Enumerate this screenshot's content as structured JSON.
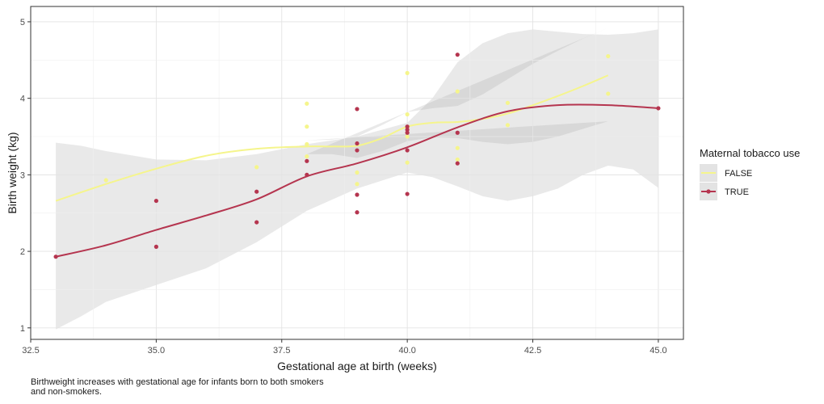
{
  "chart_data": {
    "type": "scatter",
    "xlabel": "Gestational age at birth (weeks)",
    "ylabel": "Birth weight (kg)",
    "xlim": [
      32.5,
      45.5
    ],
    "ylim": [
      0.85,
      5.2
    ],
    "xticks": [
      32.5,
      35.0,
      37.5,
      40.0,
      42.5,
      45.0
    ],
    "xtick_labels": [
      "32.5",
      "35.0",
      "37.5",
      "40.0",
      "42.5",
      "45.0"
    ],
    "yticks": [
      1,
      2,
      3,
      4,
      5
    ],
    "ytick_labels": [
      "1",
      "2",
      "3",
      "4",
      "5"
    ],
    "grid": true,
    "legend": {
      "title": "Maternal tobacco use",
      "position": "right"
    },
    "series": [
      {
        "name": "FALSE",
        "color": "#f5f58c",
        "points": [
          [
            34,
            2.93
          ],
          [
            37,
            3.1
          ],
          [
            38,
            3.93
          ],
          [
            38,
            3.63
          ],
          [
            38,
            3.4
          ],
          [
            38,
            3.24
          ],
          [
            39,
            3.03
          ],
          [
            39,
            2.88
          ],
          [
            40,
            4.33
          ],
          [
            40,
            3.79
          ],
          [
            40,
            3.62
          ],
          [
            40,
            3.5
          ],
          [
            40,
            3.16
          ],
          [
            41,
            4.09
          ],
          [
            41,
            3.35
          ],
          [
            41,
            3.2
          ],
          [
            42,
            3.94
          ],
          [
            42,
            3.65
          ],
          [
            44,
            4.55
          ],
          [
            44,
            4.06
          ]
        ],
        "smooth": [
          [
            33,
            2.66
          ],
          [
            34,
            2.88
          ],
          [
            35,
            3.08
          ],
          [
            36,
            3.25
          ],
          [
            37,
            3.34
          ],
          [
            38,
            3.37
          ],
          [
            38.5,
            3.37
          ],
          [
            39,
            3.38
          ],
          [
            39.5,
            3.48
          ],
          [
            40,
            3.63
          ],
          [
            40.5,
            3.68
          ],
          [
            41,
            3.69
          ],
          [
            41.5,
            3.73
          ],
          [
            42,
            3.8
          ],
          [
            42.5,
            3.91
          ],
          [
            43,
            4.03
          ],
          [
            43.5,
            4.16
          ],
          [
            44,
            4.3
          ]
        ],
        "band_upper": [
          [
            38,
            3.45
          ],
          [
            38.5,
            3.46
          ],
          [
            39,
            3.5
          ],
          [
            39.5,
            3.65
          ],
          [
            40,
            3.82
          ],
          [
            40.5,
            3.87
          ],
          [
            41,
            3.9
          ],
          [
            41.5,
            4.05
          ],
          [
            42,
            4.25
          ],
          [
            42.5,
            4.45
          ],
          [
            43,
            4.62
          ],
          [
            43.5,
            4.78
          ],
          [
            44,
            4.92
          ]
        ],
        "band_lower": [
          [
            38,
            3.27
          ],
          [
            38.5,
            3.27
          ],
          [
            39,
            3.22
          ],
          [
            39.5,
            3.31
          ],
          [
            40,
            3.44
          ],
          [
            40.5,
            3.49
          ],
          [
            41,
            3.48
          ],
          [
            41.5,
            3.43
          ],
          [
            42,
            3.4
          ],
          [
            42.5,
            3.43
          ],
          [
            43,
            3.5
          ],
          [
            43.5,
            3.6
          ],
          [
            44,
            3.7
          ]
        ]
      },
      {
        "name": "TRUE",
        "color": "#b5354f",
        "points": [
          [
            33,
            1.93
          ],
          [
            35,
            2.66
          ],
          [
            35,
            2.06
          ],
          [
            37,
            2.78
          ],
          [
            37,
            2.38
          ],
          [
            38,
            3.18
          ],
          [
            38,
            3.0
          ],
          [
            39,
            3.86
          ],
          [
            39,
            3.41
          ],
          [
            39,
            3.32
          ],
          [
            39,
            2.74
          ],
          [
            39,
            2.51
          ],
          [
            40,
            3.63
          ],
          [
            40,
            3.59
          ],
          [
            40,
            3.55
          ],
          [
            40,
            3.32
          ],
          [
            40,
            2.75
          ],
          [
            41,
            4.57
          ],
          [
            41,
            3.55
          ],
          [
            41,
            3.15
          ],
          [
            45,
            3.87
          ]
        ],
        "smooth": [
          [
            33,
            1.93
          ],
          [
            34,
            2.08
          ],
          [
            35,
            2.28
          ],
          [
            36,
            2.47
          ],
          [
            37,
            2.68
          ],
          [
            38,
            2.98
          ],
          [
            39,
            3.15
          ],
          [
            40,
            3.36
          ],
          [
            41,
            3.62
          ],
          [
            42,
            3.83
          ],
          [
            43,
            3.91
          ],
          [
            44,
            3.91
          ],
          [
            45,
            3.87
          ]
        ],
        "band_upper": [
          [
            33,
            3.42
          ],
          [
            33.5,
            3.38
          ],
          [
            34,
            3.31
          ],
          [
            35,
            3.2
          ],
          [
            36,
            3.19
          ],
          [
            37,
            3.27
          ],
          [
            38,
            3.4
          ],
          [
            39,
            3.5
          ],
          [
            40,
            3.68
          ],
          [
            40.5,
            4.0
          ],
          [
            41,
            4.47
          ],
          [
            41.5,
            4.72
          ],
          [
            42,
            4.85
          ],
          [
            42.5,
            4.9
          ],
          [
            43,
            4.87
          ],
          [
            43.5,
            4.84
          ],
          [
            44,
            4.83
          ],
          [
            44.5,
            4.85
          ],
          [
            45,
            4.9
          ]
        ],
        "band_lower": [
          [
            45,
            2.83
          ],
          [
            44.5,
            3.07
          ],
          [
            44,
            3.12
          ],
          [
            43.5,
            3.0
          ],
          [
            43,
            2.82
          ],
          [
            42.5,
            2.72
          ],
          [
            42,
            2.66
          ],
          [
            41.5,
            2.72
          ],
          [
            41,
            2.85
          ],
          [
            40.5,
            2.97
          ],
          [
            40,
            3.03
          ],
          [
            39,
            2.82
          ],
          [
            38,
            2.53
          ],
          [
            37,
            2.12
          ],
          [
            36,
            1.78
          ],
          [
            35,
            1.56
          ],
          [
            34,
            1.34
          ],
          [
            33.5,
            1.15
          ],
          [
            33,
            0.98
          ]
        ]
      }
    ]
  },
  "caption": "Birthweight increases with gestational age for infants born to both smokers and non-smokers."
}
